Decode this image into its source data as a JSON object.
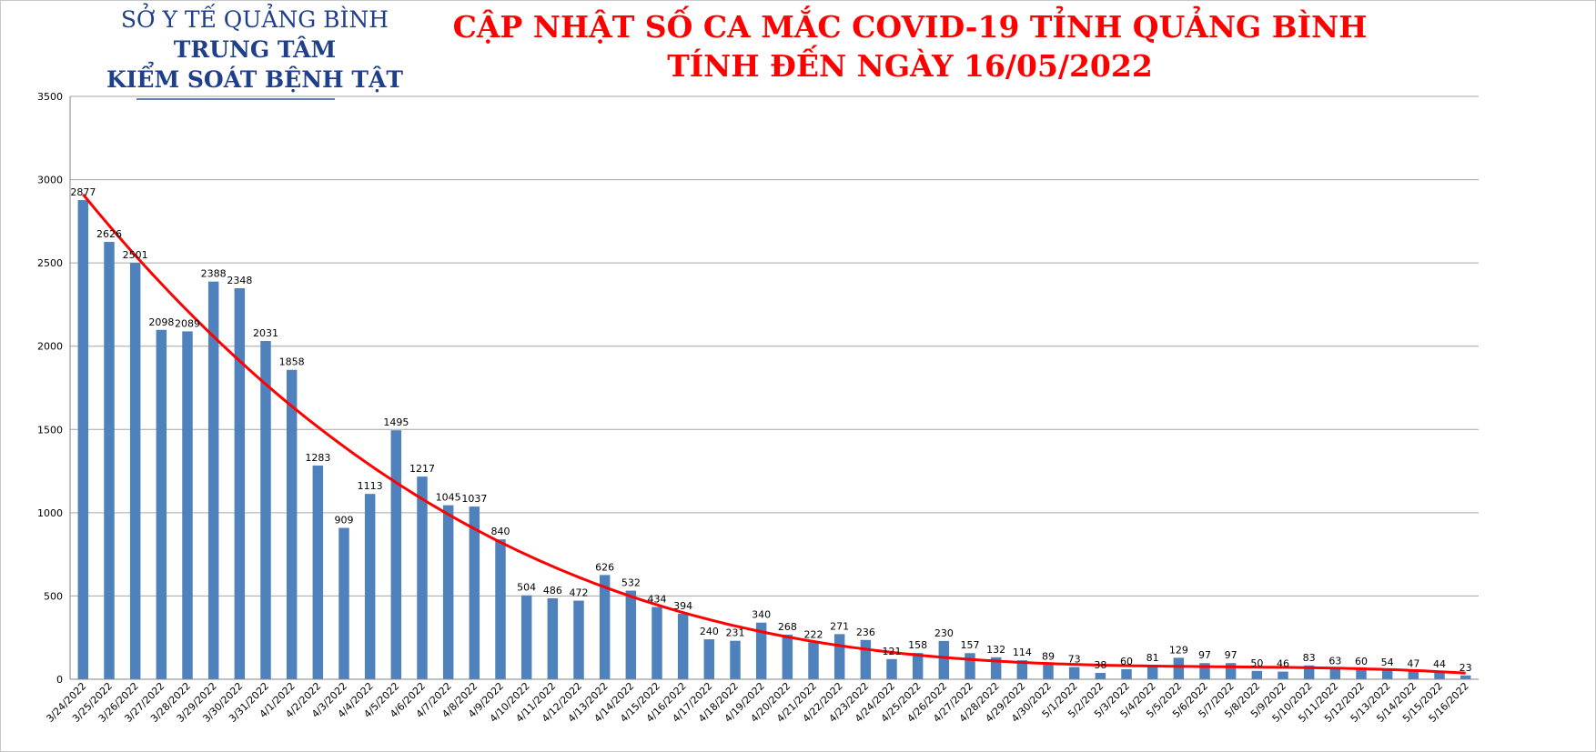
{
  "header": {
    "org_line1": "SỞ Y TẾ QUẢNG BÌNH",
    "org_line2": "TRUNG TÂM",
    "org_line3": "KIỂM SOÁT BỆNH TẬT",
    "title_line1": "CẬP NHẬT SỐ CA MẮC COVID-19 TỈNH QUẢNG BÌNH",
    "title_line2": "TÍNH ĐẾN NGÀY 16/05/2022"
  },
  "colors": {
    "bar": "#4f81bd",
    "trend": "#ff0000",
    "title": "#ff0000",
    "org": "#1f3f8a",
    "grid": "#a6a6a6"
  },
  "chart_data": {
    "type": "bar",
    "categories": [
      "3/24/2022",
      "3/25/2022",
      "3/26/2022",
      "3/27/2022",
      "3/28/2022",
      "3/29/2022",
      "3/30/2022",
      "3/31/2022",
      "4/1/2022",
      "4/2/2022",
      "4/3/2022",
      "4/4/2022",
      "4/5/2022",
      "4/6/2022",
      "4/7/2022",
      "4/8/2022",
      "4/9/2022",
      "4/10/2022",
      "4/11/2022",
      "4/12/2022",
      "4/13/2022",
      "4/14/2022",
      "4/15/2022",
      "4/16/2022",
      "4/17/2022",
      "4/18/2022",
      "4/19/2022",
      "4/20/2022",
      "4/21/2022",
      "4/22/2022",
      "4/23/2022",
      "4/24/2022",
      "4/25/2022",
      "4/26/2022",
      "4/27/2022",
      "4/28/2022",
      "4/29/2022",
      "4/30/2022",
      "5/1/2022",
      "5/2/2022",
      "5/3/2022",
      "5/4/2022",
      "5/5/2022",
      "5/6/2022",
      "5/7/2022",
      "5/8/2022",
      "5/9/2022",
      "5/10/2022",
      "5/11/2022",
      "5/12/2022",
      "5/13/2022",
      "5/14/2022",
      "5/15/2022",
      "5/16/2022"
    ],
    "values": [
      2877,
      2626,
      2501,
      2098,
      2089,
      2388,
      2348,
      2031,
      1858,
      1283,
      909,
      1113,
      1495,
      1217,
      1045,
      1037,
      840,
      504,
      486,
      472,
      626,
      532,
      434,
      394,
      240,
      231,
      340,
      268,
      222,
      271,
      236,
      121,
      158,
      230,
      157,
      132,
      114,
      89,
      73,
      38,
      60,
      81,
      129,
      97,
      97,
      50,
      46,
      83,
      63,
      60,
      54,
      47,
      44,
      23
    ],
    "trendline": "polynomial",
    "ylim": [
      0,
      3500
    ],
    "yticks": [
      0,
      500,
      1000,
      1500,
      2000,
      2500,
      3000,
      3500
    ],
    "grid": true,
    "legend": "none",
    "xlabel": "",
    "ylabel": ""
  }
}
